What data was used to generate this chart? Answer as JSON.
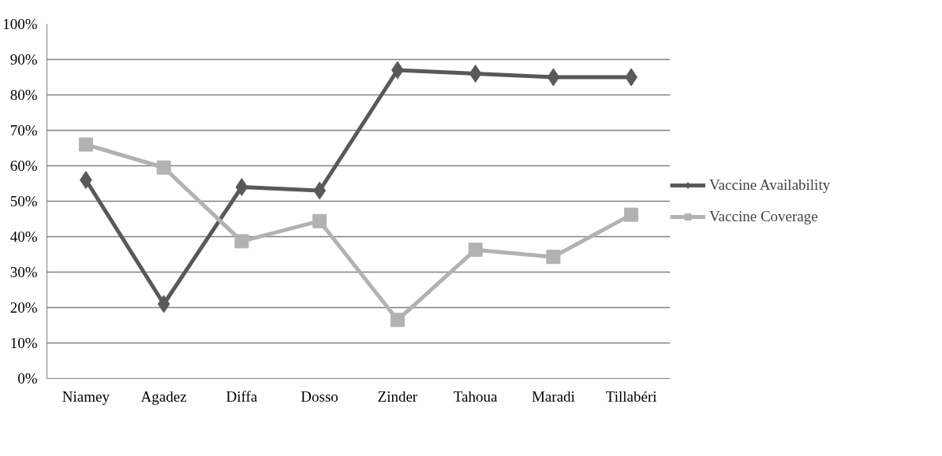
{
  "chart_data": {
    "type": "line",
    "categories": [
      "Niamey",
      "Agadez",
      "Diffa",
      "Dosso",
      "Zinder",
      "Tahoua",
      "Maradi",
      "Tillabéri"
    ],
    "series": [
      {
        "name": "Vaccine Availability",
        "color": "#595959",
        "marker": "diamond",
        "values": [
          56,
          21,
          54,
          53,
          87,
          86,
          85,
          85
        ]
      },
      {
        "name": "Vaccine Coverage",
        "color": "#b2b2b2",
        "marker": "square",
        "values": [
          66,
          59.5,
          38.7,
          44.4,
          16.5,
          36.3,
          34.3,
          46.2
        ]
      }
    ],
    "ylim": [
      0,
      100
    ],
    "yticks": [
      {
        "value": 0,
        "label": "0%"
      },
      {
        "value": 10,
        "label": "10%"
      },
      {
        "value": 20,
        "label": "20%"
      },
      {
        "value": 30,
        "label": "30%"
      },
      {
        "value": 40,
        "label": "40%"
      },
      {
        "value": 50,
        "label": "50%"
      },
      {
        "value": 60,
        "label": "60%"
      },
      {
        "value": 70,
        "label": "70%"
      },
      {
        "value": 80,
        "label": "80%"
      },
      {
        "value": 90,
        "label": "90%"
      },
      {
        "value": 100,
        "label": "100%"
      }
    ],
    "grid": "y",
    "legend": "right",
    "line_style": "solid"
  }
}
